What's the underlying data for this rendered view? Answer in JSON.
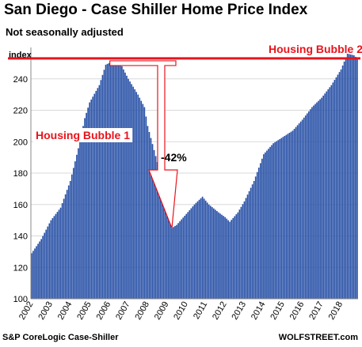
{
  "header": {
    "title": "San Diego - Case Shiller Home Price Index",
    "subtitle": "Not seasonally adjusted"
  },
  "footer": {
    "source": "S&P CoreLogic Case-Shiller",
    "brand": "WOLFSTREET.com"
  },
  "colors": {
    "bars": "#2750a6",
    "reference_line": "#e8141c",
    "annotation_text": "#e8141c",
    "grid": "#d9d9d9"
  },
  "chart_data": {
    "type": "bar",
    "title": "San Diego - Case Shiller Home Price Index",
    "subtitle": "Not seasonally adjusted",
    "ylabel": "index",
    "xlabel": "",
    "ylim": [
      100,
      260
    ],
    "yticks": [
      100,
      120,
      140,
      160,
      180,
      200,
      220,
      240
    ],
    "grid": true,
    "frequency": "monthly",
    "start": "2002-01",
    "year_labels": [
      "2002",
      "2003",
      "2004",
      "2005",
      "2006",
      "2007",
      "2008",
      "2009",
      "2010",
      "2011",
      "2012",
      "2013",
      "2014",
      "2015",
      "2016",
      "2017",
      "2018"
    ],
    "anchors": [
      [
        "2002-01",
        129
      ],
      [
        "2002-07",
        138
      ],
      [
        "2003-01",
        150
      ],
      [
        "2003-07",
        158
      ],
      [
        "2004-01",
        175
      ],
      [
        "2004-07",
        200
      ],
      [
        "2004-10",
        215
      ],
      [
        "2005-01",
        225
      ],
      [
        "2005-07",
        236
      ],
      [
        "2005-11",
        249
      ],
      [
        "2006-01",
        250
      ],
      [
        "2006-05",
        249
      ],
      [
        "2006-09",
        248
      ],
      [
        "2007-01",
        240
      ],
      [
        "2007-07",
        230
      ],
      [
        "2007-11",
        222
      ],
      [
        "2008-01",
        210
      ],
      [
        "2008-07",
        187
      ],
      [
        "2009-01",
        160
      ],
      [
        "2009-04",
        145
      ],
      [
        "2009-07",
        147
      ],
      [
        "2010-01",
        154
      ],
      [
        "2010-06",
        160
      ],
      [
        "2010-11",
        165
      ],
      [
        "2011-03",
        160
      ],
      [
        "2011-09",
        155
      ],
      [
        "2012-01",
        152
      ],
      [
        "2012-04",
        149
      ],
      [
        "2012-09",
        155
      ],
      [
        "2013-01",
        162
      ],
      [
        "2013-07",
        175
      ],
      [
        "2014-01",
        192
      ],
      [
        "2014-07",
        199
      ],
      [
        "2015-01",
        203
      ],
      [
        "2015-07",
        207
      ],
      [
        "2016-01",
        214
      ],
      [
        "2016-07",
        222
      ],
      [
        "2017-01",
        228
      ],
      [
        "2017-07",
        236
      ],
      [
        "2018-01",
        246
      ],
      [
        "2018-05",
        256
      ],
      [
        "2018-09",
        255
      ],
      [
        "2018-11",
        253
      ]
    ],
    "reference_line": {
      "value": 253
    },
    "annotations": [
      {
        "text": "Housing Bubble 1"
      },
      {
        "text": "Housing Bubble 2"
      },
      {
        "text": "-42%"
      }
    ]
  }
}
